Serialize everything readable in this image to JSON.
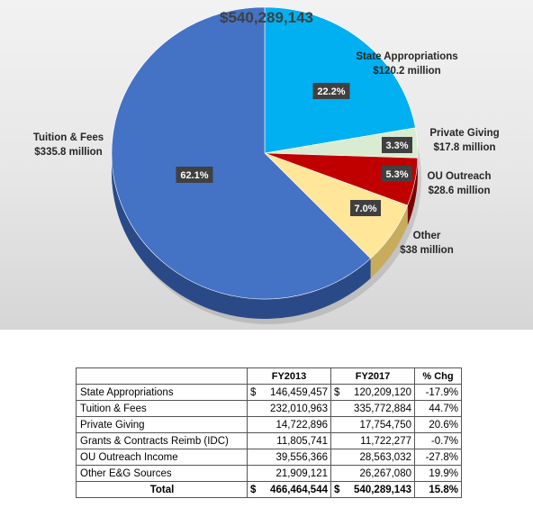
{
  "chart_data": {
    "type": "pie",
    "title": "$540,289,143",
    "slices": [
      {
        "name": "State Appropriations",
        "value_label": "$120.2 million",
        "percent": 22.2,
        "percent_label": "22.2%",
        "color": "#00b0f0",
        "side": "#0088bb"
      },
      {
        "name": "Private Giving",
        "value_label": "$17.8 million",
        "percent": 3.3,
        "percent_label": "3.3%",
        "color": "#d9ecd2",
        "side": "#a9c0a0"
      },
      {
        "name": "OU Outreach",
        "value_label": "$28.6 million",
        "percent": 5.3,
        "percent_label": "5.3%",
        "color": "#c00000",
        "side": "#7a0000"
      },
      {
        "name": "Other",
        "value_label": "$38 million",
        "percent": 7.0,
        "percent_label": "7.0%",
        "color": "#ffe699",
        "side": "#c8ac5e"
      },
      {
        "name": "Tuition & Fees",
        "value_label": "$335.8 million",
        "percent": 62.1,
        "percent_label": "62.1%",
        "color": "#4472c4",
        "side": "#2a4a87"
      }
    ]
  },
  "table": {
    "headers": [
      "",
      "FY2013",
      "FY2017",
      "% Chg"
    ],
    "rows": [
      {
        "label": "State Appropriations",
        "fy2013": "146,459,457",
        "fy2017": "120,209,120",
        "chg": "-17.9%",
        "dollar": true
      },
      {
        "label": "Tuition & Fees",
        "fy2013": "232,010,963",
        "fy2017": "335,772,884",
        "chg": "44.7%",
        "dollar": false
      },
      {
        "label": "Private Giving",
        "fy2013": "14,722,896",
        "fy2017": "17,754,750",
        "chg": "20.6%",
        "dollar": false
      },
      {
        "label": "Grants & Contracts Reimb (IDC)",
        "fy2013": "11,805,741",
        "fy2017": "11,722,277",
        "chg": "-0.7%",
        "dollar": false
      },
      {
        "label": "OU Outreach Income",
        "fy2013": "39,556,366",
        "fy2017": "28,563,032",
        "chg": "-27.8%",
        "dollar": false
      },
      {
        "label": "Other E&G Sources",
        "fy2013": "21,909,121",
        "fy2017": "26,267,080",
        "chg": "19.9%",
        "dollar": false
      }
    ],
    "total": {
      "label": "Total",
      "fy2013": "466,464,544",
      "fy2017": "540,289,143",
      "chg": "15.8%",
      "dollar": true
    },
    "currency_symbol": "$"
  }
}
